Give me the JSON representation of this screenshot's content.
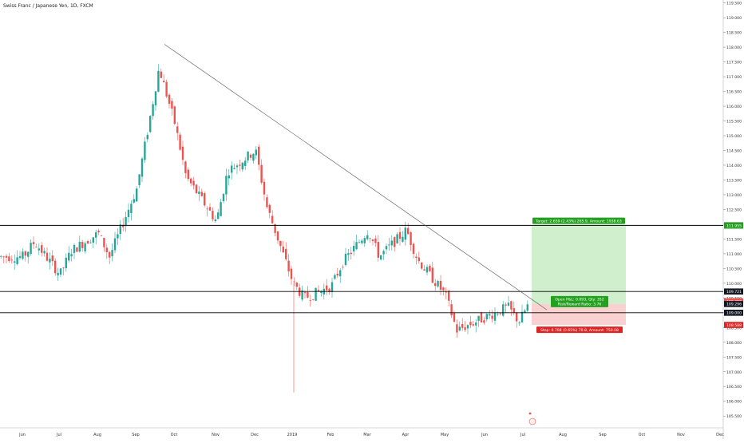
{
  "header": {
    "symbol_title": "Swiss Franc / Japanese Yen, 1D, FXCM"
  },
  "colors": {
    "up": "#26a69a",
    "down": "#ef5350",
    "line": "#000000",
    "target_zone": "#c8ecc4",
    "stop_zone": "#f9c9c9",
    "target_label": "#24a021",
    "stop_label": "#e02424",
    "tag_dark": "#131722"
  },
  "chart_data": {
    "type": "candlestick",
    "title": "Swiss Franc / Japanese Yen, 1D, FXCM",
    "xlabel": "",
    "ylabel": "",
    "ylim": [
      105.1,
      119.6
    ],
    "y_ticks": [
      105.5,
      106.0,
      106.5,
      107.0,
      107.5,
      108.0,
      108.5,
      109.0,
      109.5,
      110.0,
      110.5,
      111.0,
      111.5,
      112.0,
      112.5,
      113.0,
      113.5,
      114.0,
      114.5,
      115.0,
      115.5,
      116.0,
      116.5,
      117.0,
      117.5,
      118.0,
      118.5,
      119.0,
      119.5
    ],
    "x_ticks": [
      "Jun",
      "Jul",
      "Aug",
      "Sep",
      "Oct",
      "Nov",
      "Dec",
      "2019",
      "Feb",
      "Mar",
      "Apr",
      "May",
      "Jun",
      "Jul",
      "Aug",
      "Sep",
      "Oct",
      "Nov",
      "Dec"
    ],
    "close_path": [
      [
        "Jun",
        110.9
      ],
      [
        "Jun",
        111.4
      ],
      [
        "Jul",
        110.3
      ],
      [
        "Jul",
        111.1
      ],
      [
        "Aug",
        111.7
      ],
      [
        "Aug",
        110.9
      ],
      [
        "Sep",
        113.2
      ],
      [
        "Sep",
        115.2
      ],
      [
        "Sep",
        117.3
      ],
      [
        "Oct",
        115.4
      ],
      [
        "Oct",
        113.6
      ],
      [
        "Nov",
        112.1
      ],
      [
        "Nov",
        113.8
      ],
      [
        "Dec",
        114.5
      ],
      [
        "Dec",
        112.6
      ],
      [
        "2019",
        110.0
      ],
      [
        "2019",
        109.5
      ],
      [
        "Feb",
        109.9
      ],
      [
        "Feb",
        110.7
      ],
      [
        "Mar",
        111.8
      ],
      [
        "Mar",
        110.9
      ],
      [
        "Apr",
        111.8
      ],
      [
        "Apr",
        110.8
      ],
      [
        "May",
        109.6
      ],
      [
        "May",
        108.4
      ],
      [
        "Jun",
        109.2
      ],
      [
        "Jun",
        108.7
      ],
      [
        "Jul",
        110.4
      ],
      [
        "Jul",
        109.3
      ]
    ],
    "horizontal_levels": [
      111.961,
      109.721,
      109.0
    ],
    "trendline": {
      "from": [
        "Sep",
        118.1
      ],
      "to": [
        "Jul",
        109.1
      ]
    },
    "position": {
      "target_text": "Target: 2.659 (2.43%) 265.9, Amount: 1938.63",
      "stop_text": "Stop: 0.708 (0.65%) 70.8, Amount: 750.08",
      "pnl_text": "Open P&L: 0.093, Qty: 352",
      "rr_text": "Risk/Reward Ratio: 3.76",
      "target_price": 111.955,
      "entry_price": 109.296,
      "stop_price": 108.588
    },
    "price_tags": [
      "111.961",
      "111.955",
      "109.721",
      "109.389",
      "109.296",
      "109.000",
      "108.588"
    ]
  }
}
